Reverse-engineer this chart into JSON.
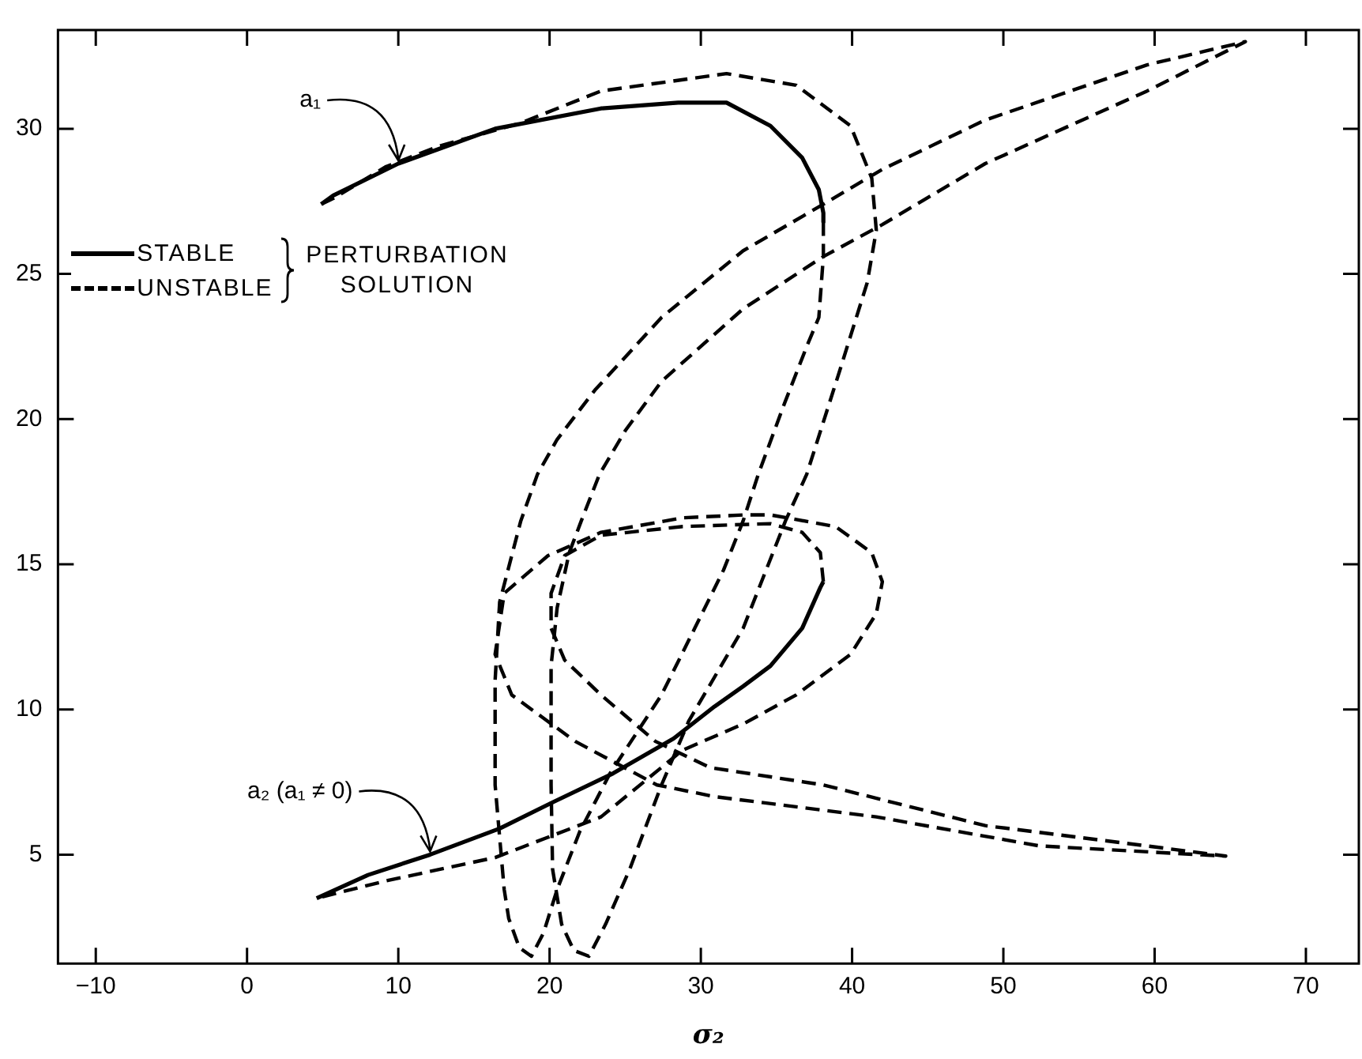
{
  "chart_data": {
    "type": "line",
    "xlabel": "σ₂",
    "legend": "left",
    "legend_title": "PERTURBATION SOLUTION",
    "grid": false,
    "marker": "none",
    "xlim": [
      -12.5,
      73.5
    ],
    "xticks": [
      -10,
      0,
      10,
      20,
      30,
      40,
      50,
      60,
      70
    ],
    "ylim": [
      1.25,
      33.4
    ],
    "yticks": [
      5,
      10,
      15,
      20,
      25,
      30
    ],
    "annotations": [
      {
        "text": "a₁",
        "x": 10,
        "y": 28.8
      },
      {
        "text": "a₂ (a₁ ≠ 0)",
        "x": 12.1,
        "y": 5.0
      }
    ],
    "series": [
      {
        "name": "STABLE",
        "color": "#000000",
        "line_style": "solid",
        "x": [
          4.9,
          5.7,
          10,
          16.4,
          23.4,
          28.5,
          31.7,
          34.6,
          36.7,
          37.8,
          38.1,
          38.1
        ],
        "values": [
          27.4,
          27.7,
          28.8,
          30,
          30.7,
          30.9,
          30.9,
          30.1,
          29.0,
          27.9,
          27.1,
          26.8
        ]
      },
      {
        "name": "UNSTABLE",
        "color": "#000000",
        "line_style": "dashed",
        "x": [
          38.1,
          38.1,
          37.8,
          37,
          35.5,
          33.8,
          32.8,
          31.5,
          29.6,
          27.4,
          24,
          22,
          20.5,
          19.6,
          18.8,
          18.0,
          17.3,
          17,
          16.4,
          16.4,
          16.7,
          18.1,
          19.2,
          20.5,
          23,
          27.4,
          32.8,
          38.1,
          42,
          48.8,
          59.5,
          66,
          59.5,
          48.8,
          42,
          38.1,
          32.8,
          27.4,
          25,
          23.3,
          22.1,
          21.3,
          20.5,
          20.1,
          20.1,
          20.2,
          20.8,
          21.6,
          22.6,
          23.7,
          25.3,
          27.4,
          29.2,
          32.8,
          35.6,
          37,
          39.2,
          41,
          41.6,
          41.3,
          39.9,
          36.3,
          31.7,
          23.4,
          18.1,
          12.7,
          9.2,
          5.7,
          4.9
        ],
        "values": [
          26.8,
          25.6,
          23.5,
          22.5,
          20.5,
          18.1,
          16.5,
          14.8,
          12.8,
          10.5,
          7.8,
          5.8,
          3.8,
          2.3,
          1.5,
          1.8,
          2.8,
          3.8,
          7.4,
          11,
          13.7,
          16.5,
          18.1,
          19.3,
          21,
          23.5,
          25.8,
          27.4,
          28.6,
          30.3,
          32.2,
          33.0,
          31.3,
          28.8,
          26.7,
          25.6,
          23.8,
          21.3,
          19.6,
          18.1,
          16.5,
          15.4,
          13.5,
          11.5,
          7.4,
          4.5,
          2.6,
          1.7,
          1.5,
          2.6,
          4.5,
          7.4,
          9.6,
          12.8,
          16.5,
          18.1,
          21.7,
          24.7,
          26.5,
          28.3,
          30.1,
          31.5,
          31.9,
          31.3,
          30.2,
          29.4,
          28.7,
          27.6,
          27.4
        ]
      },
      {
        "color": "#000000",
        "line_style": "solid",
        "x": [
          4.6,
          8,
          12.1,
          16.7,
          20.2,
          24.2,
          28.2,
          30.9,
          32.8,
          34.6,
          36.7,
          37.9,
          38.1
        ],
        "values": [
          3.5,
          4.3,
          5.0,
          5.9,
          6.8,
          7.8,
          9.0,
          10.1,
          10.8,
          11.5,
          12.8,
          14.2,
          14.4
        ]
      },
      {
        "color": "#000000",
        "line_style": "dashed",
        "x": [
          38.1,
          37.9,
          36.7,
          34.6,
          28.8,
          23.4,
          21,
          20.1,
          20.1,
          21,
          23.4,
          27,
          30.6,
          38.1,
          48.8,
          59.5,
          64.7,
          52.4,
          41.6,
          30.9,
          27.1,
          21.7,
          17.5,
          16.4,
          17,
          19.9,
          23.4,
          28.8,
          32.8,
          34.6,
          38.9,
          41.3,
          42,
          41.6,
          39.9,
          36.3,
          32.8,
          28.8,
          23.4,
          16.4,
          9.2,
          4.6
        ],
        "values": [
          14.4,
          15.4,
          16.1,
          16.4,
          16.3,
          16.0,
          15.3,
          14.0,
          12.8,
          11.7,
          10.5,
          8.9,
          8.0,
          7.4,
          6.0,
          5.3,
          4.95,
          5.3,
          6.3,
          7.0,
          7.4,
          8.9,
          10.5,
          11.9,
          14.0,
          15.3,
          16.1,
          16.6,
          16.7,
          16.7,
          16.3,
          15.4,
          14.4,
          13.3,
          11.9,
          10.5,
          9.5,
          8.6,
          6.3,
          4.9,
          4.1,
          3.5
        ]
      }
    ]
  }
}
